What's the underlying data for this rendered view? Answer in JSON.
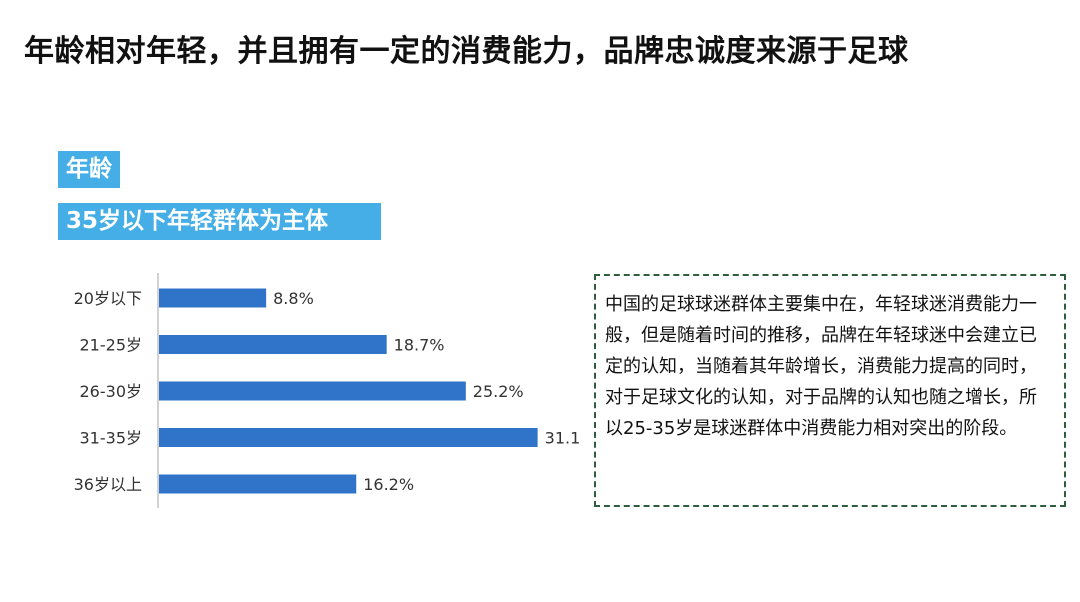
{
  "title": "年龄相对年轻，并且拥有一定的消费能力，品牌忠诚度来源于足球",
  "section": {
    "tag": "年龄",
    "headline": "35岁以下年轻群体为主体"
  },
  "chart_data": {
    "type": "bar",
    "orientation": "horizontal",
    "categories": [
      "20岁以下",
      "21-25岁",
      "26-30岁",
      "31-35岁",
      "36岁以上"
    ],
    "values": [
      8.8,
      18.7,
      25.2,
      31.1,
      16.2
    ],
    "value_labels": [
      "8.8%",
      "18.7%",
      "25.2%",
      "31.1%",
      "16.2%"
    ],
    "unit": "%",
    "xlim": [
      0,
      40
    ],
    "grid": false,
    "legend": "none",
    "bar_color": "#2f74c8"
  },
  "note": {
    "text": "中国的足球球迷群体主要集中在，年轻球迷消费能力一般，但是随着时间的推移，品牌在年轻球迷中会建立已定的认知，当随着其年龄增长，消费能力提高的同时，对于足球文化的认知，对于品牌的认知也随之增长，所以25-35岁是球迷群体中消费能力相对突出的阶段。",
    "border_color": "#2e5e3e"
  }
}
